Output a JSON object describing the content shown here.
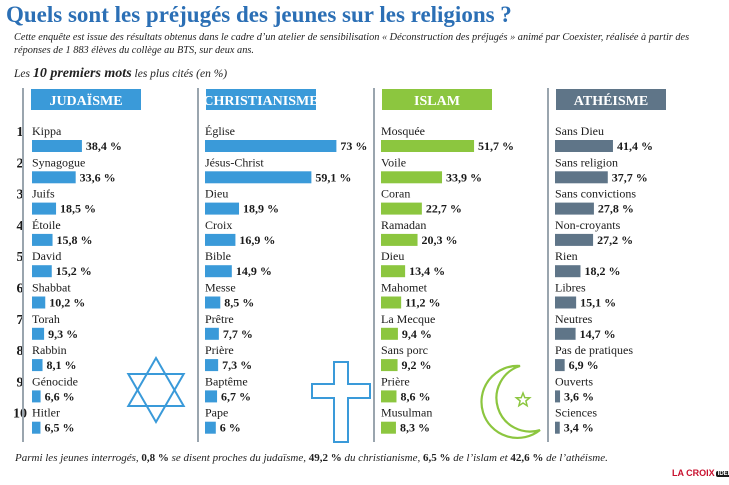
{
  "title": "Quels sont les préjugés des jeunes sur les religions ?",
  "subtitle": "Cette enquête est issue des résultats obtenus dans le cadre d’un atelier de sensibilisation « Déconstruction des préjugés » animé par Coexister, réalisée à partir des réponses de 1 883 élèves du collège au BTS, sur deux ans.",
  "lead": {
    "pre": "Les ",
    "bold": "10 premiers mots",
    "post": " les plus cités (en %)"
  },
  "ranks": [
    "1",
    "2",
    "3",
    "4",
    "5",
    "6",
    "7",
    "8",
    "9",
    "10"
  ],
  "chart_data": {
    "type": "bar",
    "orientation": "horizontal",
    "unit": "%",
    "series": [
      {
        "name": "JUDAÏSME",
        "color": "#3a9ad9",
        "icon": "star-of-david-icon",
        "items": [
          {
            "label": "Kippa",
            "value": 38.4,
            "value_label": "38,4 %"
          },
          {
            "label": "Synagogue",
            "value": 33.6,
            "value_label": "33,6 %"
          },
          {
            "label": "Juifs",
            "value": 18.5,
            "value_label": "18,5 %"
          },
          {
            "label": "Étoile",
            "value": 15.8,
            "value_label": "15,8 %"
          },
          {
            "label": "David",
            "value": 15.2,
            "value_label": "15,2 %"
          },
          {
            "label": "Shabbat",
            "value": 10.2,
            "value_label": "10,2 %"
          },
          {
            "label": "Torah",
            "value": 9.3,
            "value_label": "9,3 %"
          },
          {
            "label": "Rabbin",
            "value": 8.1,
            "value_label": "8,1 %"
          },
          {
            "label": "Génocide",
            "value": 6.6,
            "value_label": "6,6 %"
          },
          {
            "label": "Hitler",
            "value": 6.5,
            "value_label": "6,5 %"
          }
        ]
      },
      {
        "name": "CHRISTIANISME",
        "color": "#3a9ad9",
        "icon": "cross-icon",
        "items": [
          {
            "label": "Église",
            "value": 73,
            "value_label": "73 %"
          },
          {
            "label": "Jésus-Christ",
            "value": 59.1,
            "value_label": "59,1 %"
          },
          {
            "label": "Dieu",
            "value": 18.9,
            "value_label": "18,9 %"
          },
          {
            "label": "Croix",
            "value": 16.9,
            "value_label": "16,9 %"
          },
          {
            "label": "Bible",
            "value": 14.9,
            "value_label": "14,9 %"
          },
          {
            "label": "Messe",
            "value": 8.5,
            "value_label": "8,5 %"
          },
          {
            "label": "Prêtre",
            "value": 7.7,
            "value_label": "7,7 %"
          },
          {
            "label": "Prière",
            "value": 7.3,
            "value_label": "7,3 %"
          },
          {
            "label": "Baptême",
            "value": 6.7,
            "value_label": "6,7 %"
          },
          {
            "label": "Pape",
            "value": 6,
            "value_label": "6 %"
          }
        ]
      },
      {
        "name": "ISLAM",
        "color": "#8cc63f",
        "icon": "crescent-star-icon",
        "items": [
          {
            "label": "Mosquée",
            "value": 51.7,
            "value_label": "51,7 %"
          },
          {
            "label": "Voile",
            "value": 33.9,
            "value_label": "33,9 %"
          },
          {
            "label": "Coran",
            "value": 22.7,
            "value_label": "22,7 %"
          },
          {
            "label": "Ramadan",
            "value": 20.3,
            "value_label": "20,3 %"
          },
          {
            "label": "Dieu",
            "value": 13.4,
            "value_label": "13,4 %"
          },
          {
            "label": "Mahomet",
            "value": 11.2,
            "value_label": "11,2 %"
          },
          {
            "label": "La Mecque",
            "value": 9.4,
            "value_label": "9,4 %"
          },
          {
            "label": "Sans porc",
            "value": 9.2,
            "value_label": "9,2 %"
          },
          {
            "label": "Prière",
            "value": 8.6,
            "value_label": "8,6 %"
          },
          {
            "label": "Musulman",
            "value": 8.3,
            "value_label": "8,3 %"
          }
        ]
      },
      {
        "name": "ATHÉISME",
        "color": "#5f7588",
        "icon": "",
        "items": [
          {
            "label": "Sans Dieu",
            "value": 41.4,
            "value_label": "41,4 %"
          },
          {
            "label": "Sans religion",
            "value": 37.7,
            "value_label": "37,7 %"
          },
          {
            "label": "Sans convictions",
            "value": 27.8,
            "value_label": "27,8 %"
          },
          {
            "label": "Non-croyants",
            "value": 27.2,
            "value_label": "27,2 %"
          },
          {
            "label": "Rien",
            "value": 18.2,
            "value_label": "18,2 %"
          },
          {
            "label": "Libres",
            "value": 15.1,
            "value_label": "15,1 %"
          },
          {
            "label": "Neutres",
            "value": 14.7,
            "value_label": "14,7 %"
          },
          {
            "label": "Pas de pratiques",
            "value": 6.9,
            "value_label": "6,9 %"
          },
          {
            "label": "Ouverts",
            "value": 3.6,
            "value_label": "3,6 %"
          },
          {
            "label": "Sciences",
            "value": 3.4,
            "value_label": "3,4 %"
          }
        ]
      }
    ]
  },
  "footer": {
    "parts": [
      {
        "text": "Parmi les jeunes interrogés, ",
        "bold": false
      },
      {
        "text": "0,8 %",
        "bold": true
      },
      {
        "text": " se disent proches du judaïsme, ",
        "bold": false
      },
      {
        "text": "49,2 %",
        "bold": true
      },
      {
        "text": "  du christianisme, ",
        "bold": false
      },
      {
        "text": "6,5 %",
        "bold": true
      },
      {
        "text": " de l’islam et ",
        "bold": false
      },
      {
        "text": "42,6 %",
        "bold": true
      },
      {
        "text": " de l’athéisme.",
        "bold": false
      }
    ]
  },
  "logo": {
    "text": "LA CROIX",
    "badge": "IDÉE"
  }
}
